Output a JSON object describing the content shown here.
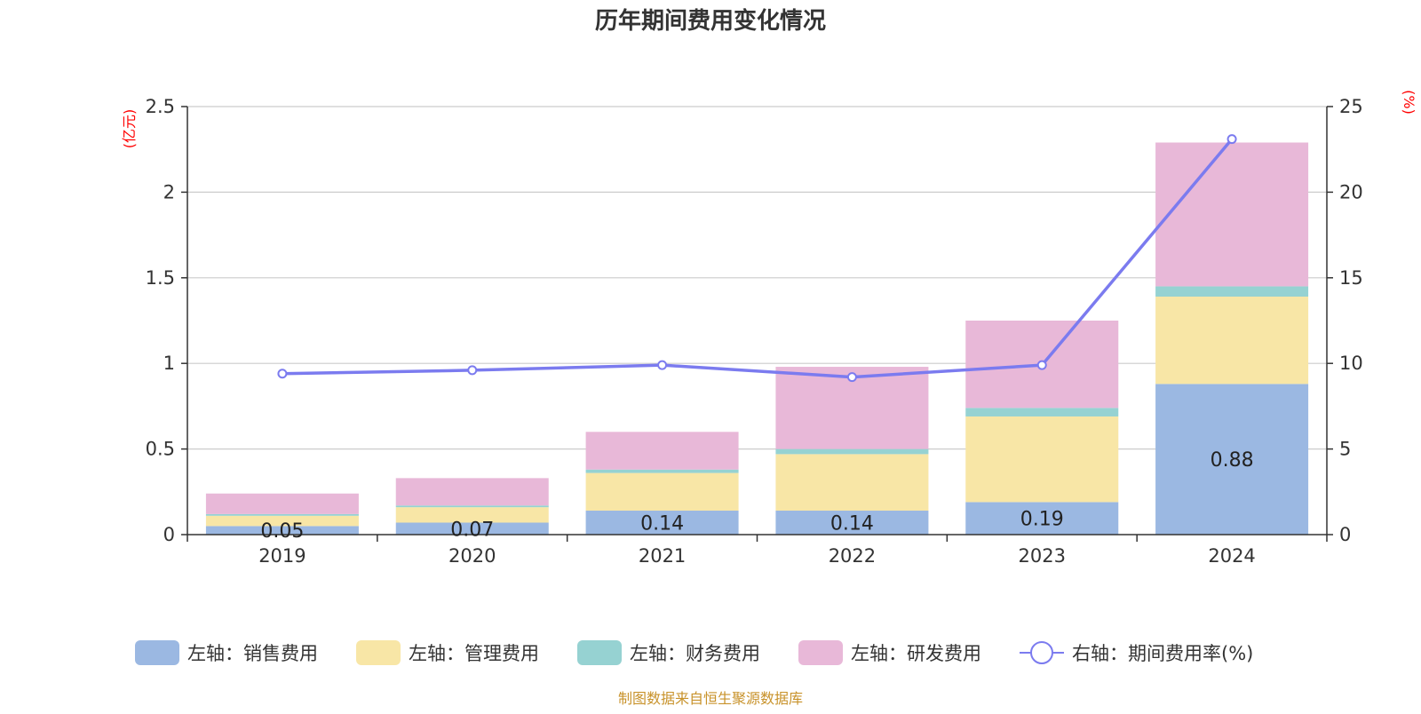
{
  "chart_data": {
    "type": "bar",
    "title": "历年期间费用变化情况",
    "categories": [
      "2019",
      "2020",
      "2021",
      "2022",
      "2023",
      "2024"
    ],
    "left_axis": {
      "unit": "(亿元)",
      "ylim": [
        0,
        2.5
      ],
      "ticks": [
        "0",
        "0.5",
        "1",
        "1.5",
        "2",
        "2.5"
      ]
    },
    "right_axis": {
      "unit": "(%)",
      "ylim": [
        0,
        25
      ],
      "ticks": [
        "0",
        "5",
        "10",
        "15",
        "20",
        "25"
      ]
    },
    "series": [
      {
        "name": "左轴：销售费用",
        "type": "bar",
        "axis": "left",
        "color": "#9bb8e2",
        "values": [
          0.05,
          0.07,
          0.14,
          0.14,
          0.19,
          0.88
        ],
        "labels": [
          "0.05",
          "0.07",
          "0.14",
          "0.14",
          "0.19",
          "0.88"
        ]
      },
      {
        "name": "左轴：管理费用",
        "type": "bar",
        "axis": "left",
        "color": "#f8e6a6",
        "values": [
          0.06,
          0.09,
          0.22,
          0.33,
          0.5,
          0.51
        ]
      },
      {
        "name": "左轴：财务费用",
        "type": "bar",
        "axis": "left",
        "color": "#96d2d2",
        "values": [
          0.01,
          0.01,
          0.02,
          0.03,
          0.05,
          0.06
        ]
      },
      {
        "name": "左轴：研发费用",
        "type": "bar",
        "axis": "left",
        "color": "#e8b8d8",
        "values": [
          0.12,
          0.16,
          0.22,
          0.48,
          0.51,
          0.84
        ]
      },
      {
        "name": "右轴：期间费用率(%)",
        "type": "line",
        "axis": "right",
        "color": "#7b7bef",
        "values": [
          9.4,
          9.6,
          9.9,
          9.2,
          9.9,
          23.1
        ]
      }
    ],
    "grid": true,
    "legend_position": "bottom"
  },
  "source": "制图数据来自恒生聚源数据库"
}
